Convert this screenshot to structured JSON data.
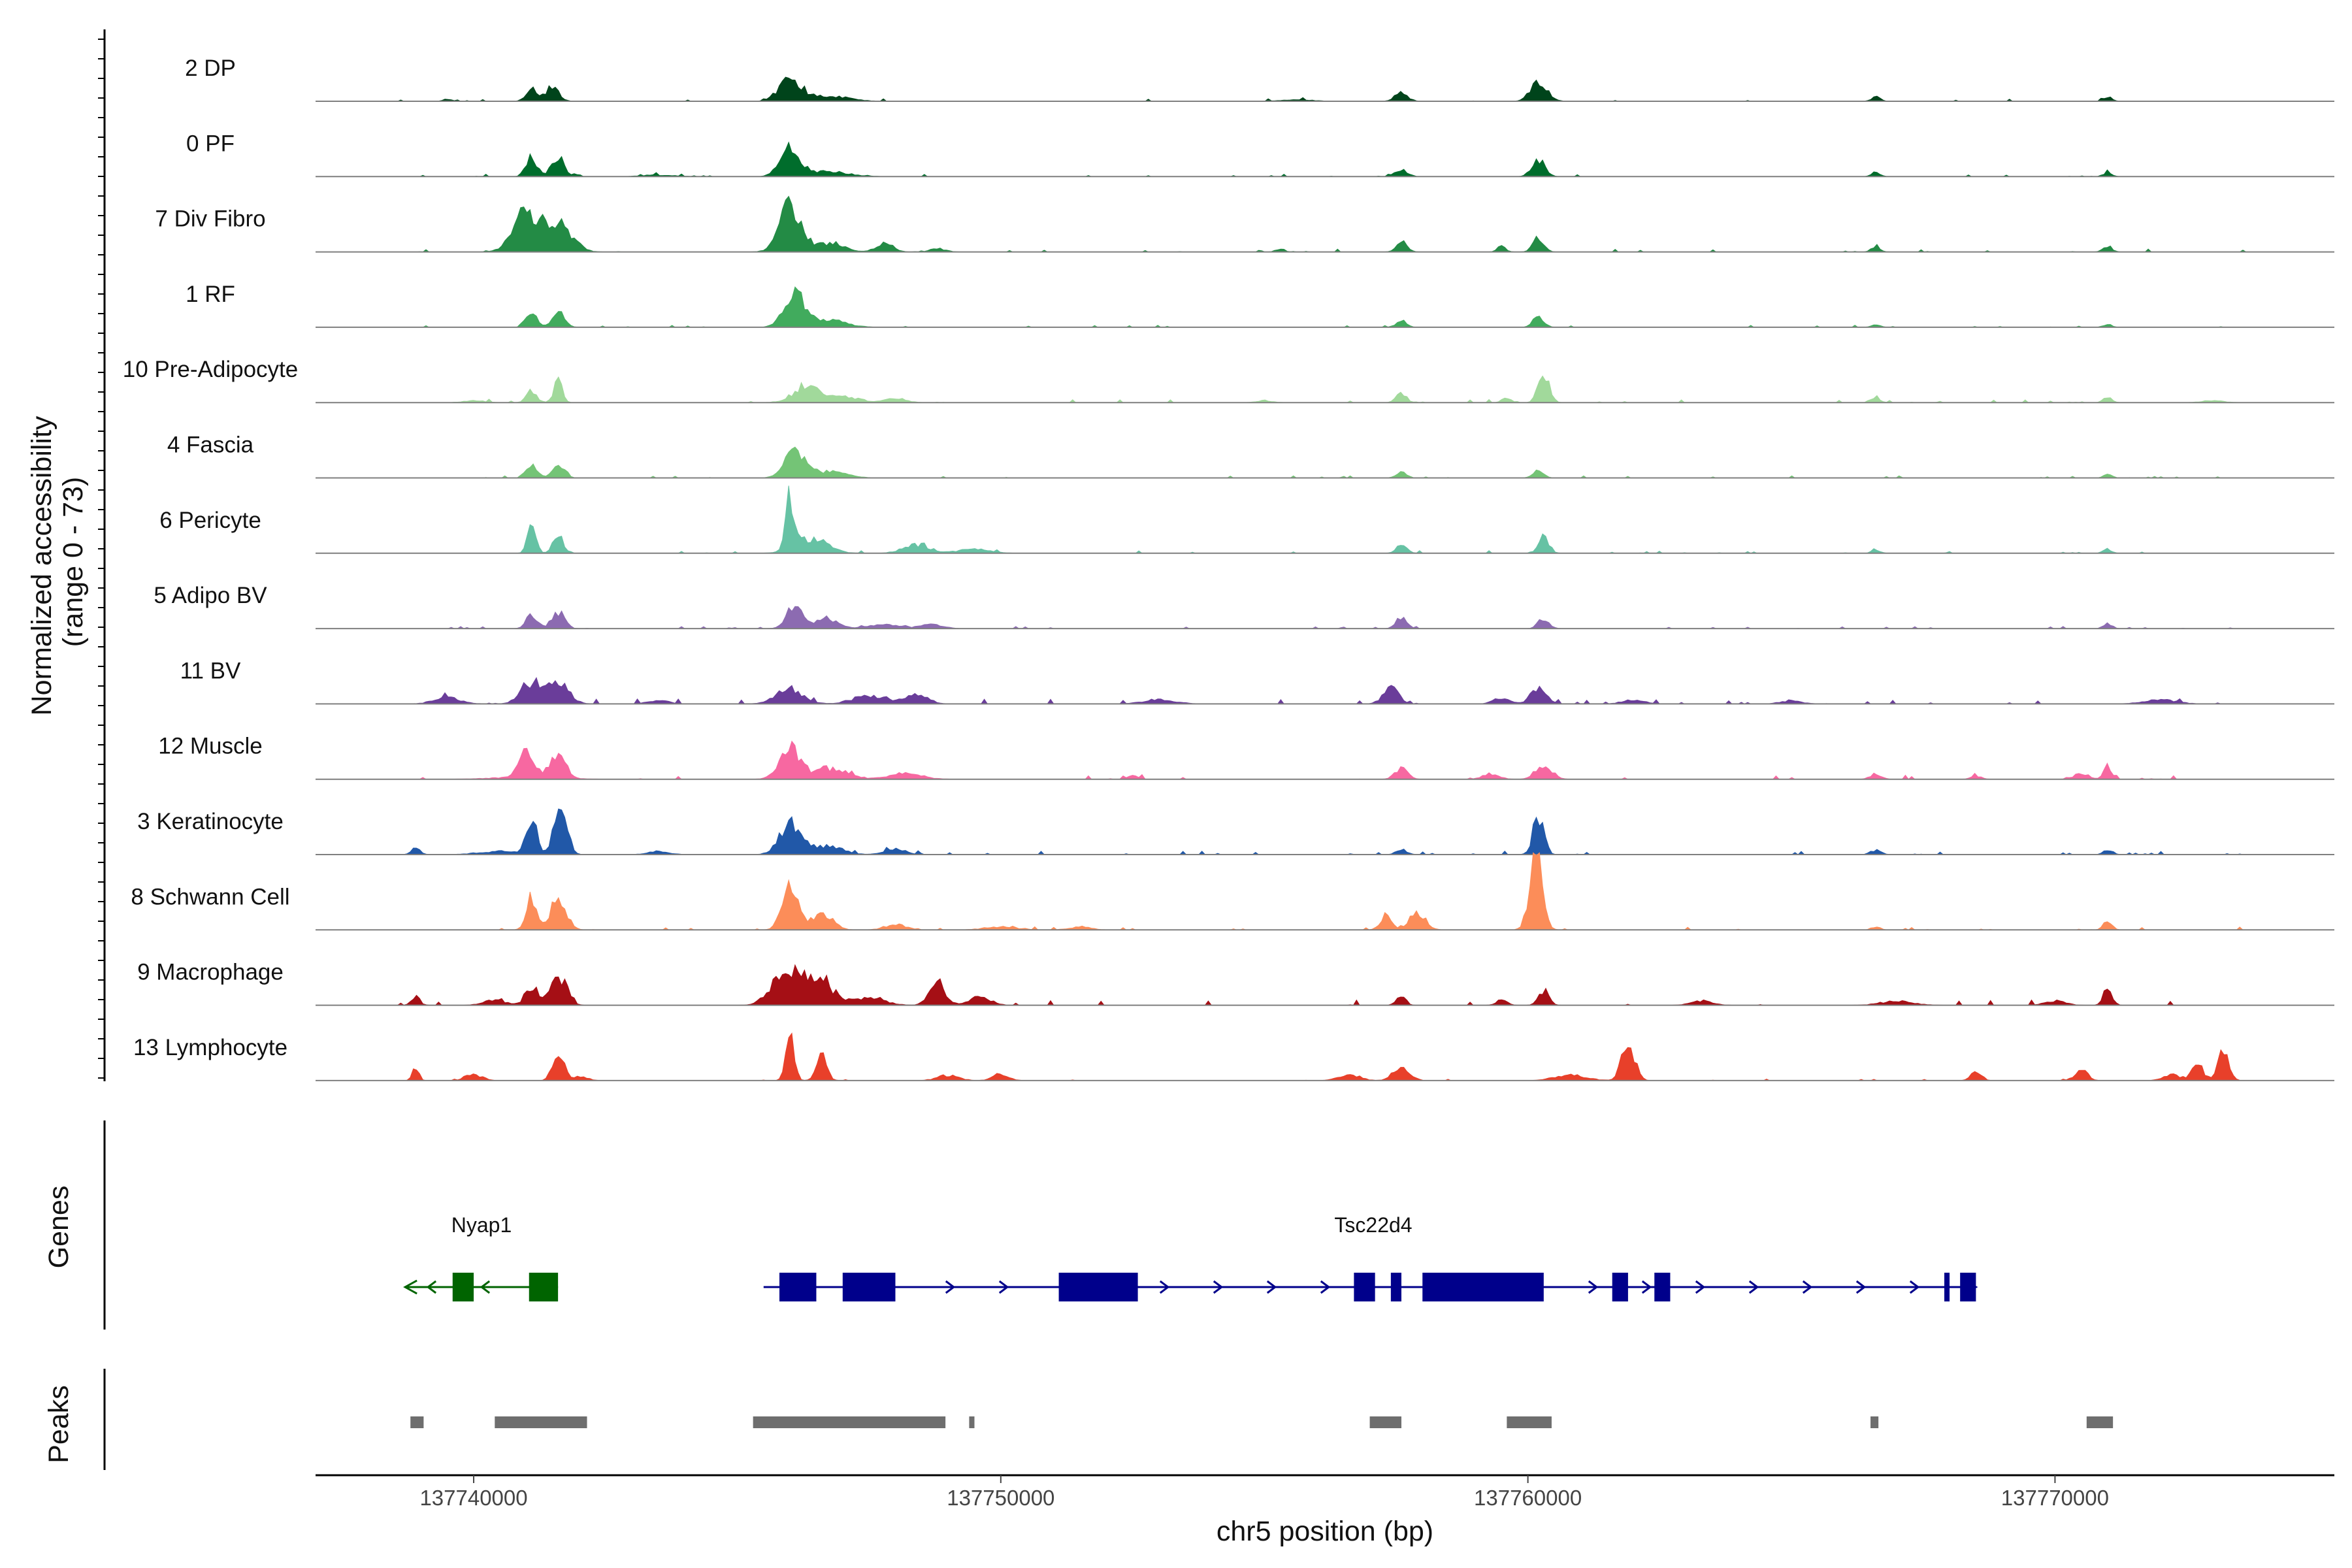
{
  "chart_data": {
    "type": "area",
    "title": "",
    "region": {
      "chrom": "chr5",
      "start": 137737000,
      "end": 137775300
    },
    "xlabel": "chr5 position (bp)",
    "xticks": [
      137740000,
      137750000,
      137760000,
      137770000
    ],
    "xtick_labels": [
      "137740000",
      "137750000",
      "137760000",
      "137770000"
    ],
    "ylabel_line1": "Normalized accessibility",
    "ylabel_line2": "(range 0 - 73)",
    "ylim": [
      0,
      73
    ],
    "panel_labels": {
      "genes": "Genes",
      "peaks": "Peaks"
    },
    "tracks": [
      {
        "name": "2 DP",
        "color": "#00441b",
        "noise": 0.9,
        "peaks": [
          [
            137741100,
            100,
            14
          ],
          [
            137741500,
            120,
            14
          ],
          [
            137746000,
            200,
            22
          ],
          [
            137746700,
            400,
            5
          ],
          [
            137755600,
            300,
            1.5
          ],
          [
            137757600,
            120,
            8
          ],
          [
            137760200,
            150,
            20
          ],
          [
            137766600,
            80,
            4
          ],
          [
            137771000,
            80,
            4
          ],
          [
            137739500,
            80,
            2
          ]
        ]
      },
      {
        "name": "0 PF",
        "color": "#006d2c",
        "noise": 0.9,
        "peaks": [
          [
            137741100,
            100,
            18
          ],
          [
            137741600,
            120,
            18
          ],
          [
            137746000,
            180,
            26
          ],
          [
            137746700,
            400,
            5
          ],
          [
            137757600,
            120,
            6
          ],
          [
            137760200,
            120,
            16
          ],
          [
            137766600,
            80,
            4
          ],
          [
            137771000,
            80,
            4
          ],
          [
            137743500,
            300,
            1.5
          ]
        ]
      },
      {
        "name": "7 Div Fibro",
        "color": "#238b45",
        "noise": 1.1,
        "peaks": [
          [
            137741000,
            250,
            34
          ],
          [
            137741600,
            250,
            28
          ],
          [
            137746000,
            200,
            42
          ],
          [
            137746700,
            300,
            8
          ],
          [
            137747800,
            150,
            9
          ],
          [
            137748800,
            150,
            3
          ],
          [
            137757600,
            100,
            10
          ],
          [
            137760200,
            100,
            14
          ],
          [
            137759500,
            80,
            5
          ],
          [
            137766600,
            80,
            6
          ],
          [
            137771000,
            80,
            6
          ],
          [
            137755300,
            80,
            3
          ]
        ]
      },
      {
        "name": "1 RF",
        "color": "#41ab5d",
        "noise": 0.8,
        "peaks": [
          [
            137741100,
            100,
            16
          ],
          [
            137741600,
            120,
            14
          ],
          [
            137746100,
            200,
            30
          ],
          [
            137746800,
            300,
            6
          ],
          [
            137757600,
            100,
            6
          ],
          [
            137760200,
            100,
            10
          ],
          [
            137766600,
            80,
            3
          ],
          [
            137771000,
            80,
            3
          ]
        ]
      },
      {
        "name": "10 Pre-Adipocyte",
        "color": "#a1d99b",
        "noise": 1.2,
        "peaks": [
          [
            137741600,
            80,
            20
          ],
          [
            137741100,
            100,
            10
          ],
          [
            137746300,
            250,
            14
          ],
          [
            137747000,
            300,
            6
          ],
          [
            137748000,
            200,
            4
          ],
          [
            137760300,
            100,
            28
          ],
          [
            137757600,
            100,
            8
          ],
          [
            137759600,
            80,
            5
          ],
          [
            137766600,
            80,
            5
          ],
          [
            137771000,
            80,
            5
          ],
          [
            137740000,
            200,
            2
          ],
          [
            137755000,
            150,
            2
          ],
          [
            137773000,
            200,
            2
          ]
        ]
      },
      {
        "name": "4 Fascia",
        "color": "#74c476",
        "noise": 0.8,
        "peaks": [
          [
            137741100,
            100,
            14
          ],
          [
            137741600,
            120,
            12
          ],
          [
            137746100,
            200,
            24
          ],
          [
            137746800,
            300,
            6
          ],
          [
            137757600,
            100,
            5
          ],
          [
            137760200,
            100,
            8
          ],
          [
            137771000,
            80,
            3
          ]
        ]
      },
      {
        "name": "6 Pericyte",
        "color": "#66c2a4",
        "noise": 1.0,
        "peaks": [
          [
            137741100,
            80,
            26
          ],
          [
            137741600,
            100,
            18
          ],
          [
            137746000,
            80,
            48
          ],
          [
            137746400,
            300,
            14
          ],
          [
            137748400,
            250,
            8
          ],
          [
            137749500,
            300,
            4
          ],
          [
            137757600,
            100,
            8
          ],
          [
            137760300,
            100,
            16
          ],
          [
            137766600,
            80,
            3
          ],
          [
            137771000,
            80,
            4
          ]
        ]
      },
      {
        "name": "5 Adipo BV",
        "color": "#8c6bb1",
        "noise": 0.8,
        "peaks": [
          [
            137741100,
            100,
            14
          ],
          [
            137741600,
            120,
            16
          ],
          [
            137746100,
            150,
            22
          ],
          [
            137746700,
            200,
            10
          ],
          [
            137747800,
            300,
            4
          ],
          [
            137748700,
            200,
            4
          ],
          [
            137757600,
            100,
            10
          ],
          [
            137760300,
            100,
            10
          ],
          [
            137771000,
            80,
            5
          ]
        ]
      },
      {
        "name": "11 BV",
        "color": "#6a3d9a",
        "noise": 2.0,
        "peaks": [
          [
            137741100,
            200,
            20
          ],
          [
            137741600,
            200,
            20
          ],
          [
            137746000,
            250,
            14
          ],
          [
            137747500,
            300,
            8
          ],
          [
            137748400,
            200,
            10
          ],
          [
            137739500,
            250,
            6
          ],
          [
            137757400,
            150,
            14
          ],
          [
            137760200,
            150,
            14
          ],
          [
            137759500,
            150,
            6
          ],
          [
            137762000,
            200,
            4
          ],
          [
            137772000,
            300,
            4
          ],
          [
            137765000,
            200,
            3
          ],
          [
            137753000,
            300,
            4
          ],
          [
            137743500,
            200,
            3
          ]
        ]
      },
      {
        "name": "12 Muscle",
        "color": "#f768a1",
        "noise": 1.6,
        "peaks": [
          [
            137741000,
            150,
            24
          ],
          [
            137741600,
            150,
            20
          ],
          [
            137746000,
            200,
            30
          ],
          [
            137746800,
            300,
            10
          ],
          [
            137748200,
            300,
            6
          ],
          [
            137757600,
            120,
            10
          ],
          [
            137760300,
            150,
            14
          ],
          [
            137759300,
            150,
            5
          ],
          [
            137771000,
            80,
            12
          ],
          [
            137770500,
            150,
            5
          ],
          [
            137766600,
            100,
            5
          ],
          [
            137768500,
            100,
            3
          ],
          [
            137752500,
            100,
            3
          ],
          [
            137741000,
            600,
            2
          ]
        ]
      },
      {
        "name": "3 Keratinocyte",
        "color": "#2158a8",
        "noise": 1.4,
        "peaks": [
          [
            137741100,
            100,
            32
          ],
          [
            137741650,
            120,
            46
          ],
          [
            137746000,
            200,
            28
          ],
          [
            137746700,
            300,
            8
          ],
          [
            137748000,
            200,
            5
          ],
          [
            137760200,
            100,
            38
          ],
          [
            137757600,
            100,
            5
          ],
          [
            137766600,
            100,
            4
          ],
          [
            137771000,
            80,
            5
          ],
          [
            137738900,
            80,
            8
          ],
          [
            137740500,
            400,
            3
          ],
          [
            137743500,
            200,
            3
          ]
        ]
      },
      {
        "name": "8 Schwann Cell",
        "color": "#fc8d59",
        "noise": 1.1,
        "peaks": [
          [
            137741100,
            100,
            30
          ],
          [
            137741600,
            150,
            28
          ],
          [
            137746000,
            150,
            38
          ],
          [
            137746600,
            200,
            14
          ],
          [
            137748000,
            200,
            5
          ],
          [
            137750000,
            300,
            3
          ],
          [
            137751500,
            200,
            3
          ],
          [
            137757300,
            100,
            14
          ],
          [
            137757900,
            150,
            18
          ],
          [
            137760150,
            120,
            70
          ],
          [
            137771000,
            80,
            8
          ],
          [
            137766600,
            80,
            3
          ]
        ]
      },
      {
        "name": "9 Macrophage",
        "color": "#a50f15",
        "noise": 2.0,
        "peaks": [
          [
            137741100,
            120,
            18
          ],
          [
            137741600,
            150,
            28
          ],
          [
            137745900,
            250,
            30
          ],
          [
            137746500,
            300,
            24
          ],
          [
            137748800,
            150,
            20
          ],
          [
            137749600,
            200,
            8
          ],
          [
            137747500,
            300,
            6
          ],
          [
            137738900,
            80,
            8
          ],
          [
            137740400,
            200,
            5
          ],
          [
            137757600,
            80,
            10
          ],
          [
            137760300,
            100,
            14
          ],
          [
            137759500,
            100,
            5
          ],
          [
            137771000,
            80,
            16
          ],
          [
            137770000,
            200,
            4
          ],
          [
            137767000,
            300,
            4
          ],
          [
            137763300,
            200,
            4
          ]
        ]
      },
      {
        "name": "13 Lymphocyte",
        "color": "#e8402a",
        "noise": 0.6,
        "peaks": [
          [
            137741600,
            100,
            30
          ],
          [
            137746000,
            80,
            40
          ],
          [
            137746600,
            100,
            22
          ],
          [
            137740000,
            150,
            6
          ],
          [
            137742000,
            150,
            4
          ],
          [
            137749000,
            200,
            5
          ],
          [
            137750000,
            150,
            6
          ],
          [
            137738900,
            60,
            12
          ],
          [
            137757600,
            150,
            14
          ],
          [
            137756600,
            200,
            6
          ],
          [
            137761900,
            120,
            38
          ],
          [
            137760800,
            300,
            5
          ],
          [
            137768500,
            100,
            8
          ],
          [
            137770500,
            120,
            10
          ],
          [
            137772700,
            100,
            16
          ],
          [
            137773200,
            100,
            28
          ],
          [
            137772200,
            150,
            6
          ]
        ]
      }
    ],
    "genes": [
      {
        "name": "Nyap1",
        "color": "#006400",
        "strand": "-",
        "start": 137738700,
        "end": 137741600,
        "exons": [
          [
            137739600,
            137740000
          ],
          [
            137741050,
            137741600
          ]
        ]
      },
      {
        "name": "Tsc22d4",
        "color": "#00008b",
        "strand": "+",
        "start": 137745500,
        "end": 137768500,
        "exons": [
          [
            137745800,
            137746500
          ],
          [
            137747000,
            137748000
          ],
          [
            137751100,
            137752600
          ],
          [
            137756700,
            137757100
          ],
          [
            137757400,
            137757600
          ],
          [
            137758000,
            137760300
          ],
          [
            137761600,
            137761900
          ],
          [
            137762400,
            137762700
          ],
          [
            137767900,
            137768000
          ],
          [
            137768200,
            137768500
          ]
        ]
      }
    ],
    "peak_regions": [
      [
        137738800,
        137739050
      ],
      [
        137740400,
        137742150
      ],
      [
        137745300,
        137748950
      ],
      [
        137749400,
        137749500
      ],
      [
        137757000,
        137757600
      ],
      [
        137759600,
        137760450
      ],
      [
        137766500,
        137766650
      ],
      [
        137770600,
        137771100
      ]
    ]
  }
}
